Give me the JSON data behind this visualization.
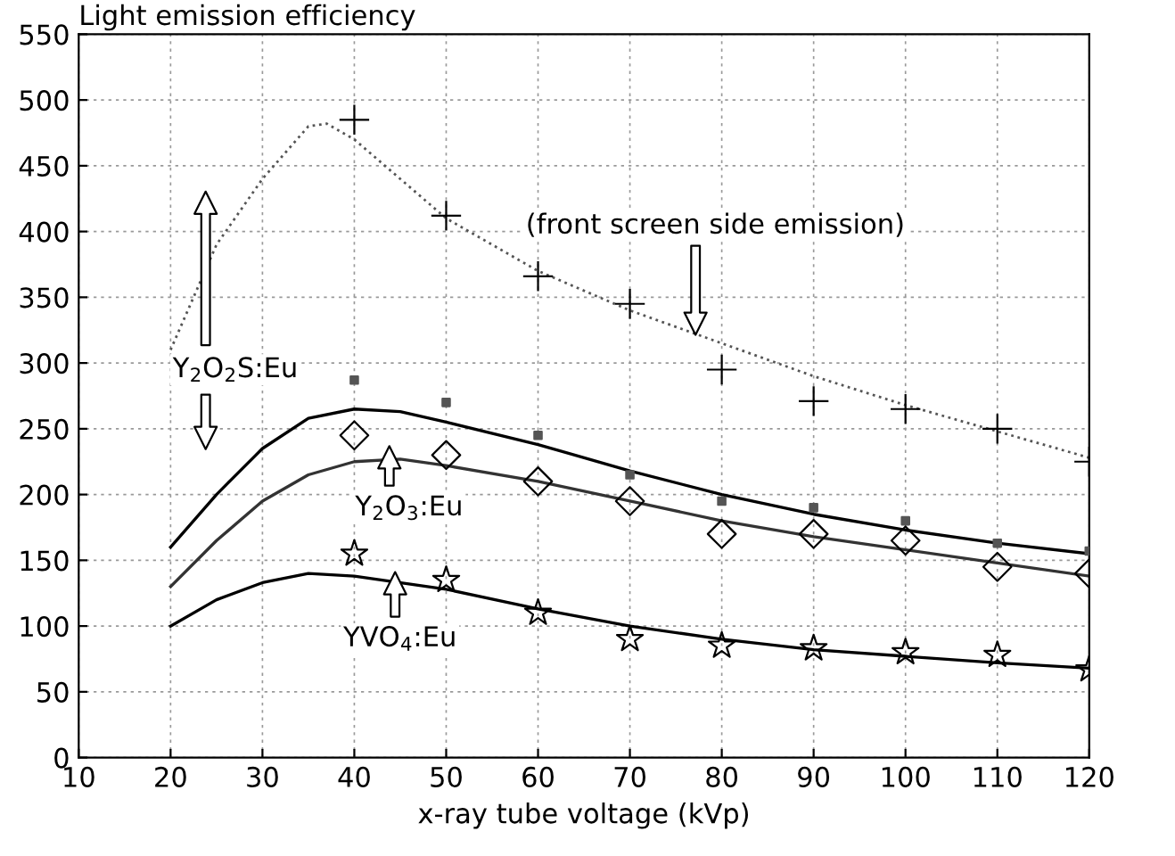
{
  "chart_data": {
    "type": "line",
    "title": "Light emission efficiency",
    "xlabel": "x-ray tube voltage (kVp)",
    "xlim": [
      10,
      120
    ],
    "ylim": [
      0,
      550
    ],
    "xticks": [
      10,
      20,
      30,
      40,
      50,
      60,
      70,
      80,
      90,
      100,
      110,
      120
    ],
    "yticks": [
      0,
      50,
      100,
      150,
      200,
      250,
      300,
      350,
      400,
      450,
      500,
      550
    ],
    "grid": true,
    "series": [
      {
        "line_style": "dotted",
        "color": "#555555",
        "x": [
          20,
          25,
          30,
          35,
          37,
          40,
          50,
          60,
          70,
          80,
          90,
          100,
          110,
          120
        ],
        "values": [
          310,
          390,
          440,
          480,
          482,
          470,
          410,
          370,
          340,
          315,
          290,
          268,
          248,
          228
        ]
      },
      {
        "type": "scatter",
        "marker": "cross",
        "color": "#000000",
        "x": [
          40,
          50,
          60,
          70,
          80,
          90,
          100,
          110,
          120
        ],
        "values": [
          485,
          412,
          366,
          345,
          295,
          271,
          265,
          250,
          225
        ]
      },
      {
        "line_style": "solid",
        "color": "#000000",
        "x": [
          20,
          25,
          30,
          35,
          40,
          45,
          50,
          60,
          70,
          80,
          90,
          100,
          110,
          120
        ],
        "values": [
          160,
          200,
          235,
          258,
          265,
          263,
          255,
          238,
          218,
          200,
          185,
          173,
          163,
          155
        ]
      },
      {
        "type": "scatter",
        "marker": "square",
        "color": "#555555",
        "x": [
          40,
          50,
          60,
          70,
          80,
          90,
          100,
          110,
          120
        ],
        "values": [
          287,
          270,
          245,
          215,
          195,
          190,
          180,
          163,
          157
        ]
      },
      {
        "line_style": "solid",
        "color": "#333333",
        "x": [
          20,
          25,
          30,
          35,
          40,
          45,
          50,
          60,
          70,
          80,
          90,
          100,
          110,
          120
        ],
        "values": [
          130,
          165,
          195,
          215,
          225,
          227,
          222,
          210,
          195,
          180,
          168,
          158,
          148,
          138
        ]
      },
      {
        "type": "scatter",
        "marker": "diamond",
        "color": "#000000",
        "x": [
          40,
          50,
          60,
          70,
          80,
          90,
          100,
          110,
          120
        ],
        "values": [
          245,
          230,
          210,
          195,
          170,
          170,
          165,
          145,
          140
        ]
      },
      {
        "line_style": "solid",
        "color": "#000000",
        "x": [
          20,
          25,
          30,
          35,
          40,
          50,
          60,
          70,
          80,
          90,
          100,
          110,
          120
        ],
        "values": [
          100,
          120,
          133,
          140,
          138,
          128,
          113,
          100,
          90,
          82,
          77,
          72,
          68
        ]
      },
      {
        "type": "scatter",
        "marker": "star",
        "color": "#000000",
        "x": [
          40,
          50,
          60,
          70,
          80,
          90,
          100,
          110,
          120
        ],
        "values": [
          155,
          135,
          110,
          90,
          85,
          83,
          80,
          78,
          67
        ]
      }
    ],
    "annotations": [
      "(front screen side emission)",
      "Y$_{2}$O$_{2}$S:Eu",
      "Y$_{2}$O$_{3}$:Eu",
      "YVO$_{4}$:Eu"
    ]
  }
}
